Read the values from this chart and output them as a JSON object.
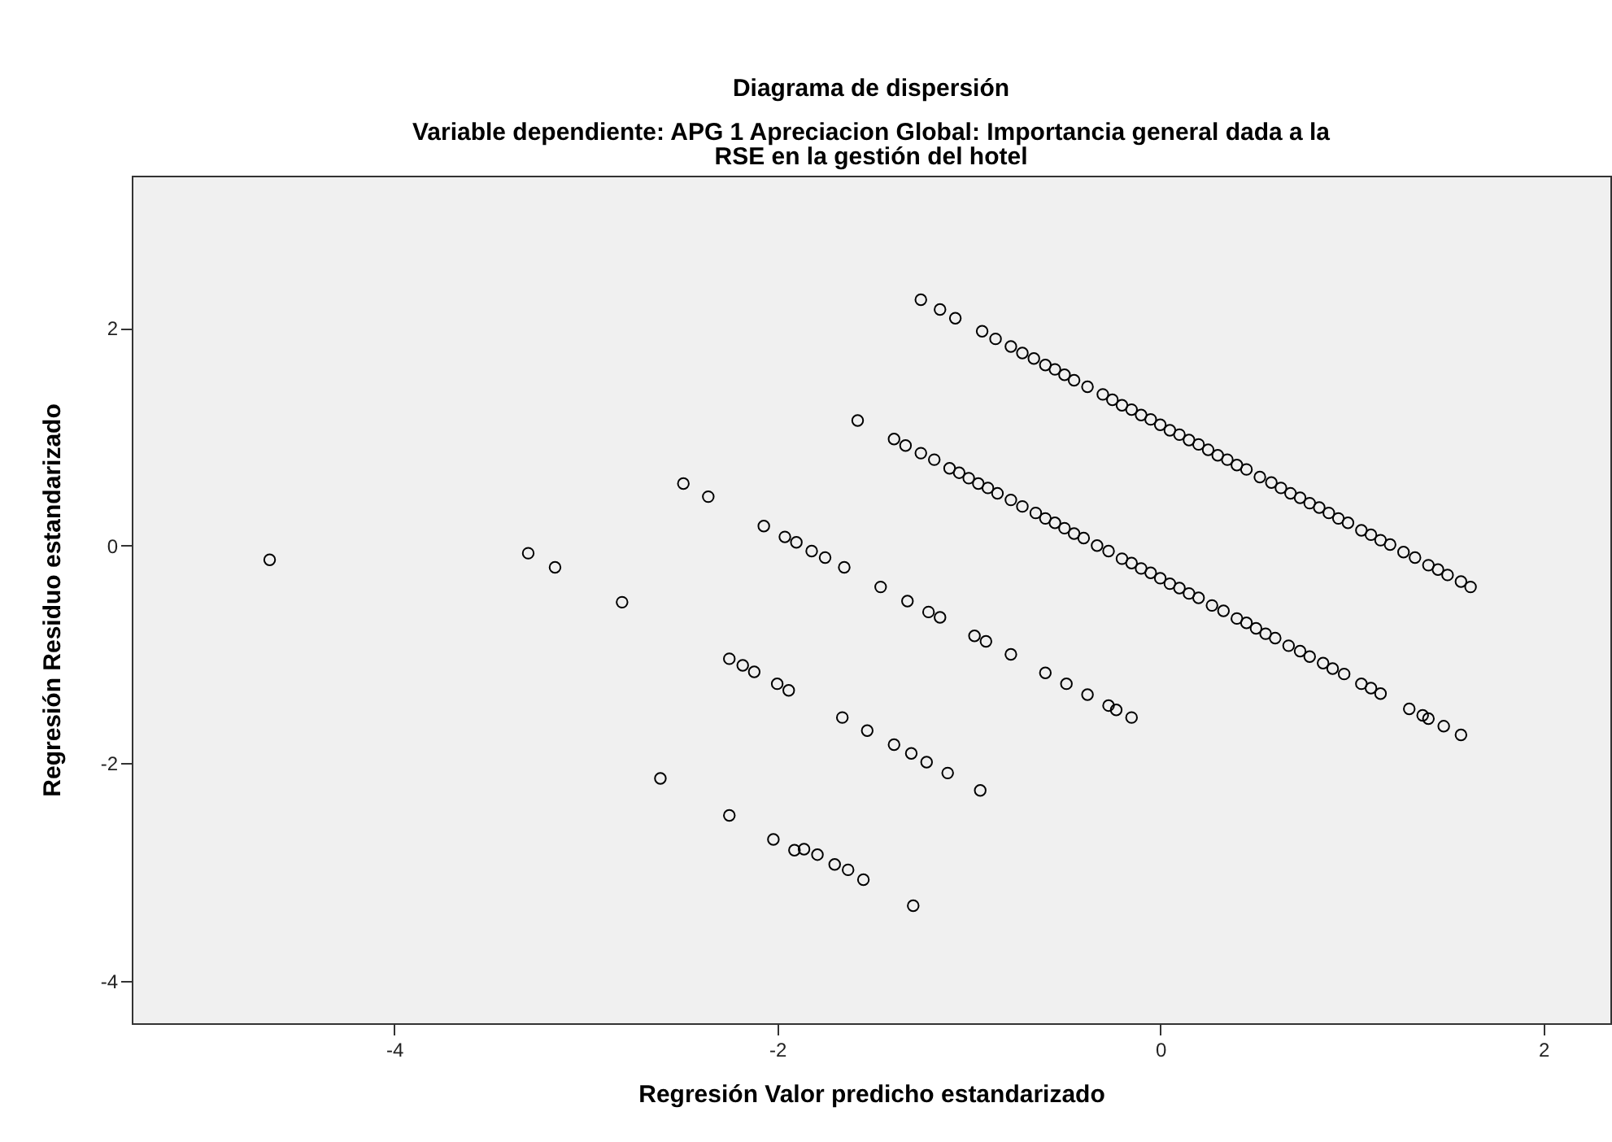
{
  "chart_data": {
    "type": "scatter",
    "title": "Diagrama de dispersión",
    "subtitle": "Variable dependiente: APG 1 Apreciacion Global: Importancia general dada a la RSE en la gestión del hotel",
    "xlabel": "Regresión Valor predicho estandarizado",
    "ylabel": "Regresión Residuo estandarizado",
    "xlim": [
      -5.37,
      2.35
    ],
    "ylim": [
      -4.39,
      3.4
    ],
    "xticks": [
      -4,
      -2,
      0,
      2
    ],
    "yticks": [
      -4,
      -2,
      0,
      2
    ],
    "grid": false,
    "marker": "circle",
    "series": [
      {
        "color": "#000000",
        "x": [
          -1.25,
          -1.15,
          -1.07,
          -0.93,
          -0.86,
          -0.78,
          -0.72,
          -0.66,
          -0.6,
          -0.55,
          -0.5,
          -0.45,
          -0.38,
          -0.3,
          -0.25,
          -0.2,
          -0.15,
          -0.1,
          -0.05,
          0,
          0.05,
          0.1,
          0.15,
          0.2,
          0.25,
          0.3,
          0.35,
          0.4,
          0.45,
          0.52,
          0.58,
          0.63,
          0.68,
          0.73,
          0.78,
          0.83,
          0.88,
          0.93,
          0.98,
          1.05,
          1.1,
          1.15,
          1.2,
          1.27,
          1.33,
          1.4,
          1.45,
          1.5,
          1.57,
          1.62,
          -1.58,
          -1.39,
          -1.33,
          -1.25,
          -1.18,
          -1.1,
          -1.05,
          -1.0,
          -0.95,
          -0.9,
          -0.85,
          -0.78,
          -0.72,
          -0.65,
          -0.6,
          -0.55,
          -0.5,
          -0.45,
          -0.4,
          -0.33,
          -0.27,
          -0.2,
          -0.15,
          -0.1,
          -0.05,
          0,
          0.05,
          0.1,
          0.15,
          0.2,
          0.27,
          0.33,
          0.4,
          0.45,
          0.5,
          0.55,
          0.6,
          0.67,
          0.73,
          0.78,
          0.85,
          0.9,
          0.96,
          1.05,
          1.1,
          1.15,
          1.3,
          1.37,
          1.4,
          1.48,
          1.57,
          -2.49,
          -2.36,
          -2.07,
          -1.96,
          -1.9,
          -1.82,
          -1.75,
          -1.65,
          -1.46,
          -1.32,
          -1.21,
          -1.15,
          -0.97,
          -0.91,
          -0.78,
          -0.6,
          -0.49,
          -0.38,
          -0.27,
          -0.23,
          -0.15,
          -3.3,
          -3.16,
          -2.81,
          -2.25,
          -2.18,
          -2.12,
          -2.0,
          -1.94,
          -1.66,
          -1.53,
          -1.39,
          -1.3,
          -1.22,
          -1.11,
          -0.94,
          -4.65,
          -2.61,
          -2.25,
          -2.02,
          -1.91,
          -1.86,
          -1.79,
          -1.7,
          -1.63,
          -1.55,
          -1.29
        ],
        "values": [
          2.26,
          2.17,
          2.09,
          1.97,
          1.9,
          1.83,
          1.77,
          1.72,
          1.66,
          1.62,
          1.57,
          1.52,
          1.46,
          1.39,
          1.34,
          1.29,
          1.25,
          1.2,
          1.16,
          1.11,
          1.06,
          1.02,
          0.97,
          0.93,
          0.88,
          0.83,
          0.79,
          0.74,
          0.7,
          0.63,
          0.58,
          0.53,
          0.48,
          0.44,
          0.39,
          0.35,
          0.3,
          0.25,
          0.21,
          0.14,
          0.1,
          0.05,
          0.01,
          -0.06,
          -0.11,
          -0.18,
          -0.22,
          -0.27,
          -0.33,
          -0.38,
          1.15,
          0.98,
          0.92,
          0.85,
          0.79,
          0.71,
          0.67,
          0.62,
          0.57,
          0.53,
          0.48,
          0.42,
          0.36,
          0.3,
          0.25,
          0.21,
          0.16,
          0.11,
          0.07,
          0.0,
          -0.05,
          -0.12,
          -0.16,
          -0.21,
          -0.25,
          -0.3,
          -0.35,
          -0.39,
          -0.44,
          -0.48,
          -0.55,
          -0.6,
          -0.67,
          -0.71,
          -0.76,
          -0.81,
          -0.85,
          -0.92,
          -0.97,
          -1.02,
          -1.08,
          -1.13,
          -1.18,
          -1.27,
          -1.31,
          -1.36,
          -1.5,
          -1.56,
          -1.59,
          -1.66,
          -1.74,
          0.57,
          0.45,
          0.18,
          0.08,
          0.03,
          -0.05,
          -0.11,
          -0.2,
          -0.38,
          -0.51,
          -0.61,
          -0.66,
          -0.83,
          -0.88,
          -1.0,
          -1.17,
          -1.27,
          -1.37,
          -1.47,
          -1.51,
          -1.58,
          -0.07,
          -0.2,
          -0.52,
          -1.04,
          -1.1,
          -1.16,
          -1.27,
          -1.33,
          -1.58,
          -1.7,
          -1.83,
          -1.91,
          -1.99,
          -2.09,
          -2.25,
          -0.13,
          -2.14,
          -2.48,
          -2.7,
          -2.8,
          -2.79,
          -2.84,
          -2.93,
          -2.98,
          -3.07,
          -3.31
        ]
      }
    ]
  }
}
